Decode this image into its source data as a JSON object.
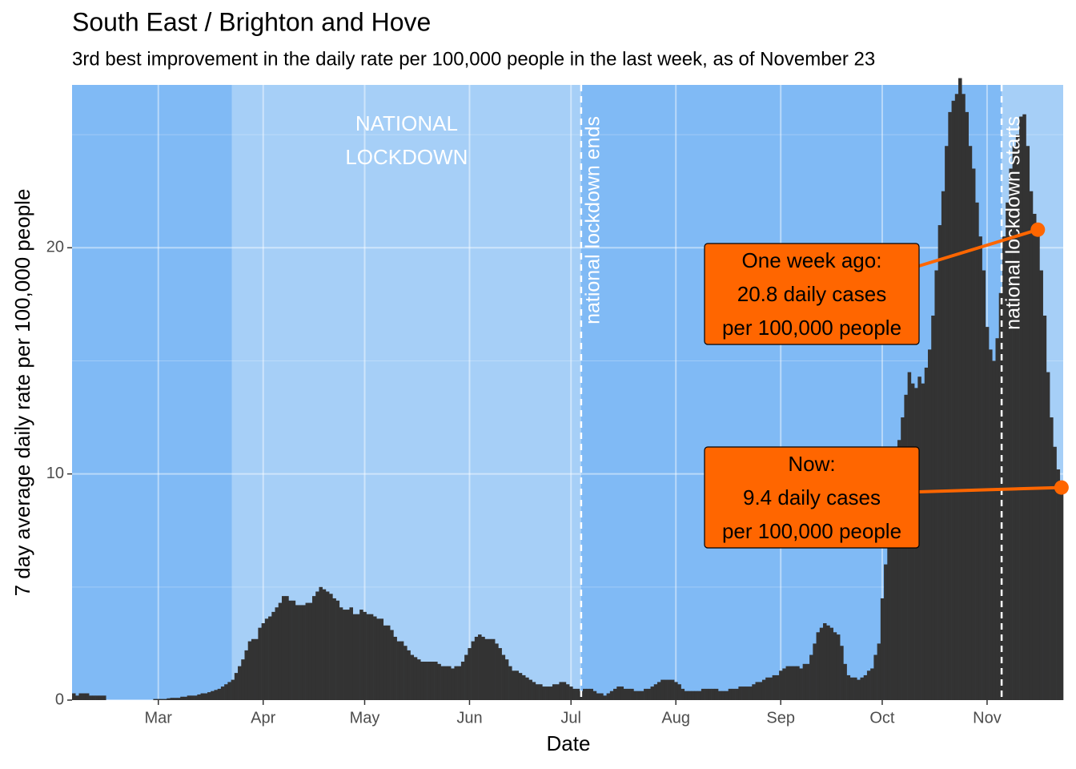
{
  "chart_data": {
    "type": "bar",
    "title": "South East / Brighton and Hove",
    "subtitle": "3rd best improvement in the daily rate per 100,000 people in the last week, as of November 23",
    "x_label": "Date",
    "y_label": "7 day average daily rate per 100,000 people",
    "color": "#333333",
    "values": [
      0.3,
      0.2,
      0.3,
      0.3,
      0.3,
      0.2,
      0.2,
      0.2,
      0.2,
      0.2,
      0,
      0,
      0,
      0,
      0,
      0,
      0,
      0,
      0,
      0,
      0,
      0,
      0,
      0,
      0.05,
      0.05,
      0.05,
      0.05,
      0.08,
      0.1,
      0.1,
      0.1,
      0.15,
      0.15,
      0.2,
      0.2,
      0.2,
      0.25,
      0.3,
      0.3,
      0.35,
      0.4,
      0.45,
      0.5,
      0.6,
      0.7,
      0.8,
      0.9,
      1.2,
      1.5,
      1.8,
      2.2,
      2.6,
      2.7,
      2.7,
      3.2,
      3.4,
      3.6,
      3.7,
      3.9,
      4.1,
      4.3,
      4.6,
      4.6,
      4.4,
      4.4,
      4.2,
      4.2,
      4.2,
      4.3,
      4.3,
      4.6,
      4.8,
      5.0,
      4.9,
      4.8,
      4.7,
      4.5,
      4.4,
      4.1,
      4.0,
      4.0,
      4.1,
      3.8,
      3.8,
      4.0,
      3.9,
      3.8,
      3.8,
      3.7,
      3.6,
      3.6,
      3.3,
      3.3,
      3.1,
      2.8,
      2.6,
      2.6,
      2.4,
      2.2,
      2.0,
      1.9,
      1.8,
      1.7,
      1.7,
      1.7,
      1.7,
      1.7,
      1.6,
      1.5,
      1.5,
      1.5,
      1.4,
      1.5,
      1.5,
      1.7,
      2.0,
      2.3,
      2.6,
      2.8,
      2.9,
      2.8,
      2.7,
      2.7,
      2.7,
      2.5,
      2.3,
      2.0,
      1.8,
      1.5,
      1.3,
      1.3,
      1.2,
      1.1,
      1.0,
      0.9,
      0.8,
      0.7,
      0.7,
      0.6,
      0.6,
      0.6,
      0.7,
      0.7,
      0.8,
      0.8,
      0.7,
      0.6,
      0.5,
      0.5,
      0.4,
      0.5,
      0.5,
      0.5,
      0.4,
      0.3,
      0.3,
      0.2,
      0.3,
      0.4,
      0.5,
      0.6,
      0.6,
      0.5,
      0.5,
      0.5,
      0.4,
      0.4,
      0.4,
      0.5,
      0.5,
      0.6,
      0.7,
      0.8,
      0.9,
      0.9,
      0.9,
      0.9,
      0.8,
      0.7,
      0.5,
      0.4,
      0.4,
      0.4,
      0.4,
      0.4,
      0.5,
      0.5,
      0.5,
      0.5,
      0.5,
      0.4,
      0.4,
      0.4,
      0.5,
      0.5,
      0.5,
      0.6,
      0.6,
      0.6,
      0.6,
      0.7,
      0.8,
      0.8,
      0.9,
      1.0,
      1.0,
      1.1,
      1.1,
      1.3,
      1.4,
      1.5,
      1.5,
      1.5,
      1.5,
      1.4,
      1.6,
      1.6,
      2.0,
      2.5,
      3.0,
      3.2,
      3.4,
      3.3,
      3.2,
      3.0,
      2.9,
      2.4,
      1.6,
      1.1,
      1.0,
      1.0,
      0.9,
      1.0,
      1.1,
      1.3,
      1.4,
      2.0,
      2.5,
      4.5,
      6.0,
      7.5,
      9.0,
      10.0,
      11.5,
      12.5,
      13.5,
      14.5,
      14.0,
      13.8,
      14.3,
      14.0,
      14.7,
      15.5,
      17.0,
      19.0,
      21.0,
      22.5,
      24.5,
      26.0,
      26.5,
      26.8,
      27.5,
      26.8,
      26.0,
      24.5,
      23.5,
      22.0,
      20.5,
      19.0,
      16.5,
      15.5,
      15.0,
      16.0,
      18.0,
      20.5,
      22.0,
      23.5,
      24.5,
      25.0,
      25.8,
      25.9,
      24.5,
      22.5,
      21.5,
      20.8,
      19.0,
      17.0,
      14.5,
      12.5,
      11.2,
      10.2,
      9.4
    ],
    "xlim": [
      0,
      293
    ],
    "xticks": [
      {
        "value": 25.5,
        "label": "Mar"
      },
      {
        "value": 56.5,
        "label": "Apr"
      },
      {
        "value": 86.5,
        "label": "May"
      },
      {
        "value": 117.5,
        "label": "Jun"
      },
      {
        "value": 147.5,
        "label": "Jul"
      },
      {
        "value": 178.5,
        "label": "Aug"
      },
      {
        "value": 209.5,
        "label": "Sep"
      },
      {
        "value": 239.5,
        "label": "Oct"
      },
      {
        "value": 270.5,
        "label": "Nov"
      }
    ],
    "ylim": [
      0,
      27.2
    ],
    "yticks": [
      0,
      10,
      20
    ],
    "yminor": [
      5,
      15,
      25
    ],
    "grid": true,
    "shading": [
      {
        "start": 0,
        "end": 47.3,
        "color": "#80baf5"
      },
      {
        "start": 47.3,
        "end": 150.5,
        "color": "#a6cff7"
      },
      {
        "start": 150.5,
        "end": 274.8,
        "color": "#80baf5"
      },
      {
        "start": 274.8,
        "end": 293,
        "color": "#a6cff7"
      }
    ],
    "region_label": [
      "NATIONAL",
      "LOCKDOWN"
    ],
    "vlines": [
      {
        "x": 150.5,
        "label": "national lockdown ends"
      },
      {
        "x": 274.8,
        "label": "national lockdown starts"
      }
    ],
    "highlights": [
      {
        "x": 285.5,
        "value": 20.8,
        "color": "#ff6600",
        "lines": [
          "One week ago:",
          "20.8 daily cases",
          "per 100,000 people"
        ]
      },
      {
        "x": 292.5,
        "value": 9.4,
        "color": "#ff6600",
        "lines": [
          "Now:",
          "9.4 daily cases",
          "per 100,000 people"
        ]
      }
    ]
  }
}
